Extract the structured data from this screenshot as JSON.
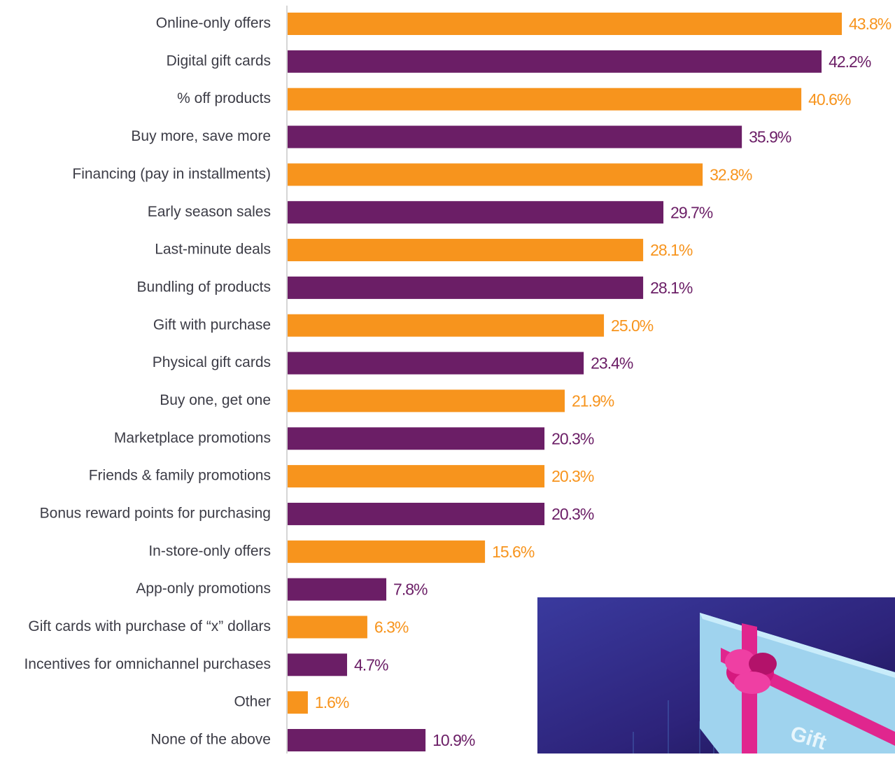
{
  "chart_data": {
    "type": "bar",
    "orientation": "horizontal",
    "categories": [
      "Online-only offers",
      "Digital gift cards",
      "% off products",
      "Buy more, save more",
      "Financing (pay in installments)",
      "Early season sales",
      "Last-minute deals",
      "Bundling of products",
      "Gift with purchase",
      "Physical gift cards",
      "Buy one, get one",
      "Marketplace promotions",
      "Friends & family promotions",
      "Bonus reward points for purchasing",
      "In-store-only offers",
      "App-only promotions",
      "Gift cards with purchase of “x” dollars",
      "Incentives for omnichannel purchases",
      "Other",
      "None of the above"
    ],
    "values": [
      43.8,
      42.2,
      40.6,
      35.9,
      32.8,
      29.7,
      28.1,
      28.1,
      25.0,
      23.4,
      21.9,
      20.3,
      20.3,
      20.3,
      15.6,
      7.8,
      6.3,
      4.7,
      1.6,
      10.9
    ],
    "value_labels": [
      "43.8%",
      "42.2%",
      "40.6%",
      "35.9%",
      "32.8%",
      "29.7%",
      "28.1%",
      "28.1%",
      "25.0%",
      "23.4%",
      "21.9%",
      "20.3%",
      "20.3%",
      "20.3%",
      "15.6%",
      "7.8%",
      "6.3%",
      "4.7%",
      "1.6%",
      "10.9%"
    ],
    "colors": [
      "#f7941d",
      "#6b1e66",
      "#f7941d",
      "#6b1e66",
      "#f7941d",
      "#6b1e66",
      "#f7941d",
      "#6b1e66",
      "#f7941d",
      "#6b1e66",
      "#f7941d",
      "#6b1e66",
      "#f7941d",
      "#6b1e66",
      "#f7941d",
      "#6b1e66",
      "#f7941d",
      "#6b1e66",
      "#f7941d",
      "#6b1e66"
    ]
  },
  "image_text": "Gift"
}
